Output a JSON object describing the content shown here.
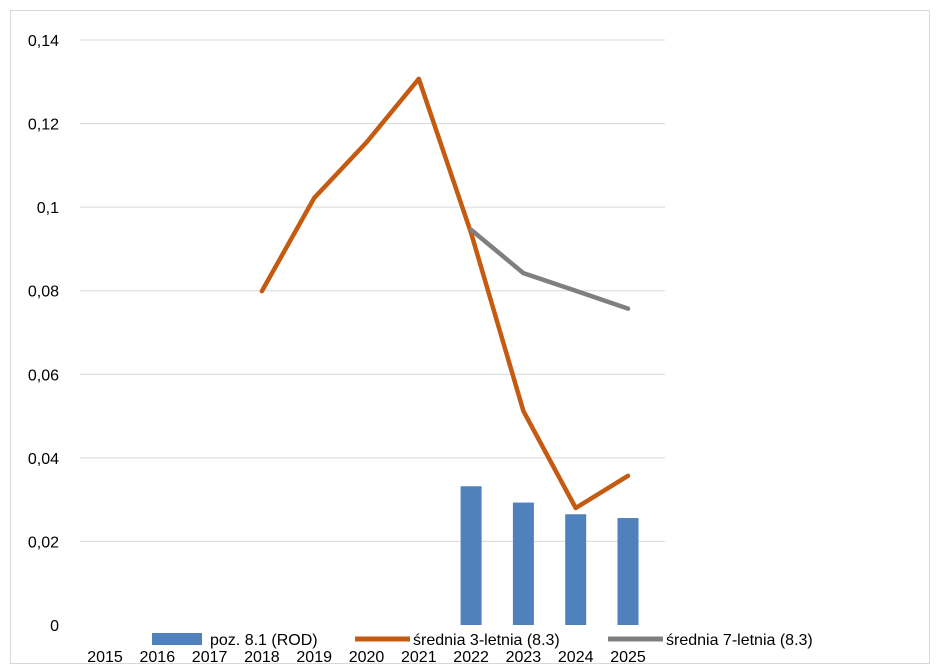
{
  "chart_data": {
    "type": "bar",
    "categories": [
      "2015",
      "2016",
      "2017",
      "2018",
      "2019",
      "2020",
      "2021",
      "2022",
      "2023",
      "2024",
      "2025"
    ],
    "series": [
      {
        "name": "poz. 8.1 (ROD)",
        "type": "bar",
        "color": "#4f81bd",
        "values": [
          null,
          null,
          null,
          null,
          null,
          null,
          null,
          0.0332,
          0.0293,
          0.0265,
          0.0256
        ]
      },
      {
        "name": "średnia 3-letnia (8.3)",
        "type": "line",
        "color": "#c55a11",
        "values": [
          null,
          null,
          null,
          0.0799,
          0.1022,
          0.1155,
          0.1307,
          0.0938,
          0.0512,
          0.028,
          0.0357
        ]
      },
      {
        "name": "średnia 7-letnia (8.3)",
        "type": "line",
        "color": "#7f7f7f",
        "values": [
          null,
          null,
          null,
          null,
          null,
          null,
          null,
          0.0946,
          0.0842,
          0.08,
          0.0757
        ]
      }
    ],
    "y_ticks": [
      "0",
      "0,02",
      "0,04",
      "0,06",
      "0,08",
      "0,1",
      "0,12",
      "0,14"
    ],
    "ylim": [
      0,
      0.14
    ],
    "grid": true,
    "legend_position": "bottom"
  }
}
